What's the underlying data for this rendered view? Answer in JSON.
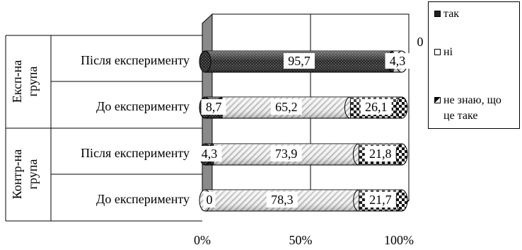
{
  "chart_data": {
    "type": "bar",
    "orientation": "horizontal",
    "stacked": "percent",
    "groups": [
      {
        "label": "Експ-на група",
        "lines": [
          "Експ-на",
          "група"
        ]
      },
      {
        "label": "Контр-на група",
        "lines": [
          "Контр-на",
          "група"
        ]
      }
    ],
    "categories": [
      "Після експерименту",
      "До експерименту",
      "Після експерименту",
      "До експерименту"
    ],
    "series": [
      {
        "name": "так",
        "values": [
          95.7,
          8.7,
          4.3,
          0
        ],
        "labels": [
          "95,7",
          "8,7",
          "4,3",
          "0"
        ],
        "color": "#333333"
      },
      {
        "name": "ні",
        "values": [
          4.3,
          65.2,
          73.9,
          78.3
        ],
        "labels": [
          "4,3",
          "65,2",
          "73,9",
          "78,3"
        ],
        "color": "#e6e6e6"
      },
      {
        "name": "не знаю, що це таке",
        "values": [
          0,
          26.1,
          21.8,
          21.7
        ],
        "labels": [
          "0",
          "26,1",
          "21,8",
          "21,7"
        ],
        "color": "#ffffff"
      }
    ],
    "xlim": [
      0,
      100
    ],
    "xticks": [
      "0%",
      "50%",
      "100%"
    ],
    "xtick_values": [
      0,
      50,
      100
    ],
    "gridlines": true,
    "legend_position": "right"
  }
}
